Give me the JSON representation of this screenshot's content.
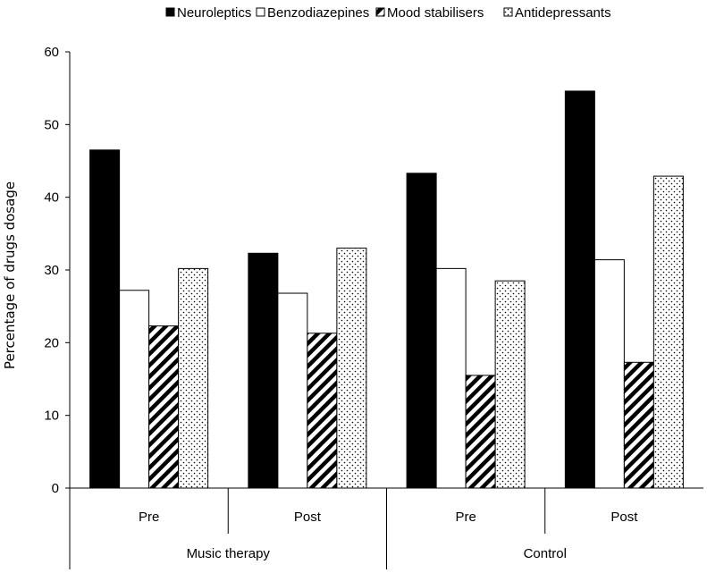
{
  "chart_data": {
    "type": "bar",
    "title": "",
    "ylabel": "Percentage of drugs dosage",
    "xlabel": "",
    "ylim": [
      0,
      60
    ],
    "yticks": [
      0,
      10,
      20,
      30,
      40,
      50,
      60
    ],
    "grid": false,
    "legend_position": "top",
    "groups": [
      {
        "label": "Music therapy",
        "categories": [
          "Pre",
          "Post"
        ]
      },
      {
        "label": "Control",
        "categories": [
          "Pre",
          "Post"
        ]
      }
    ],
    "categories": [
      "Pre",
      "Post",
      "Pre",
      "Post"
    ],
    "series": [
      {
        "name": "Neuroleptics",
        "fill": "solid-black",
        "values": [
          46.5,
          32.3,
          43.3,
          54.6
        ]
      },
      {
        "name": "Benzodiazepines",
        "fill": "white",
        "values": [
          27.2,
          26.8,
          30.2,
          31.4
        ]
      },
      {
        "name": "Mood stabilisers",
        "fill": "diagonal-stripes",
        "values": [
          22.3,
          21.3,
          15.5,
          17.3
        ]
      },
      {
        "name": "Antidepressants",
        "fill": "dots",
        "values": [
          30.2,
          33.0,
          28.5,
          42.9
        ]
      }
    ]
  }
}
